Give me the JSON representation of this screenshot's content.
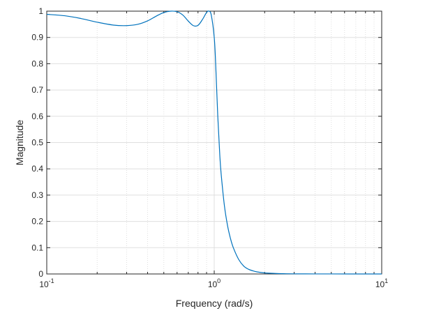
{
  "chart_data": {
    "type": "line",
    "title": "",
    "xlabel": "Frequency (rad/s)",
    "ylabel": "Magnitude",
    "xscale": "log",
    "xlim": [
      0.1,
      10
    ],
    "ylim": [
      0,
      1
    ],
    "grid": true,
    "legend": "none",
    "x_ticks": [
      {
        "value": 0.1,
        "base": "10",
        "exponent": "-1"
      },
      {
        "value": 1,
        "base": "10",
        "exponent": "0"
      },
      {
        "value": 10,
        "base": "10",
        "exponent": "1"
      }
    ],
    "y_ticks": [
      {
        "value": 0,
        "label": "0"
      },
      {
        "value": 0.1,
        "label": "0.1"
      },
      {
        "value": 0.2,
        "label": "0.2"
      },
      {
        "value": 0.3,
        "label": "0.3"
      },
      {
        "value": 0.4,
        "label": "0.4"
      },
      {
        "value": 0.5,
        "label": "0.5"
      },
      {
        "value": 0.6,
        "label": "0.6"
      },
      {
        "value": 0.7,
        "label": "0.7"
      },
      {
        "value": 0.8,
        "label": "0.8"
      },
      {
        "value": 0.9,
        "label": "0.9"
      },
      {
        "value": 1,
        "label": "1"
      }
    ],
    "series": [
      {
        "color": "#0072BD",
        "x": [
          0.1,
          0.13,
          0.16,
          0.2,
          0.25,
          0.3,
          0.35,
          0.4,
          0.45,
          0.5,
          0.55,
          0.6,
          0.65,
          0.7,
          0.75,
          0.8,
          0.85,
          0.9,
          0.93,
          0.96,
          1.0,
          1.02,
          1.05,
          1.08,
          1.1,
          1.15,
          1.2,
          1.25,
          1.3,
          1.4,
          1.5,
          1.6,
          1.7,
          1.8,
          2.0,
          2.3,
          2.6,
          3.0,
          4.0,
          5.0,
          7.0,
          10.0
        ],
        "y": [
          0.988,
          0.982,
          0.972,
          0.958,
          0.947,
          0.945,
          0.95,
          0.963,
          0.981,
          0.995,
          1.0,
          0.998,
          0.985,
          0.962,
          0.945,
          0.946,
          0.968,
          0.995,
          1.0,
          0.985,
          0.9,
          0.8,
          0.6,
          0.45,
          0.38,
          0.26,
          0.185,
          0.135,
          0.1,
          0.055,
          0.03,
          0.018,
          0.012,
          0.008,
          0.004,
          0.002,
          0.001,
          0.0005,
          0.0002,
          0.0001,
          0.0,
          0.0
        ]
      }
    ]
  },
  "colors": {
    "grid": "#dfdfdf",
    "axes": "#262626",
    "line": "#0072BD"
  }
}
